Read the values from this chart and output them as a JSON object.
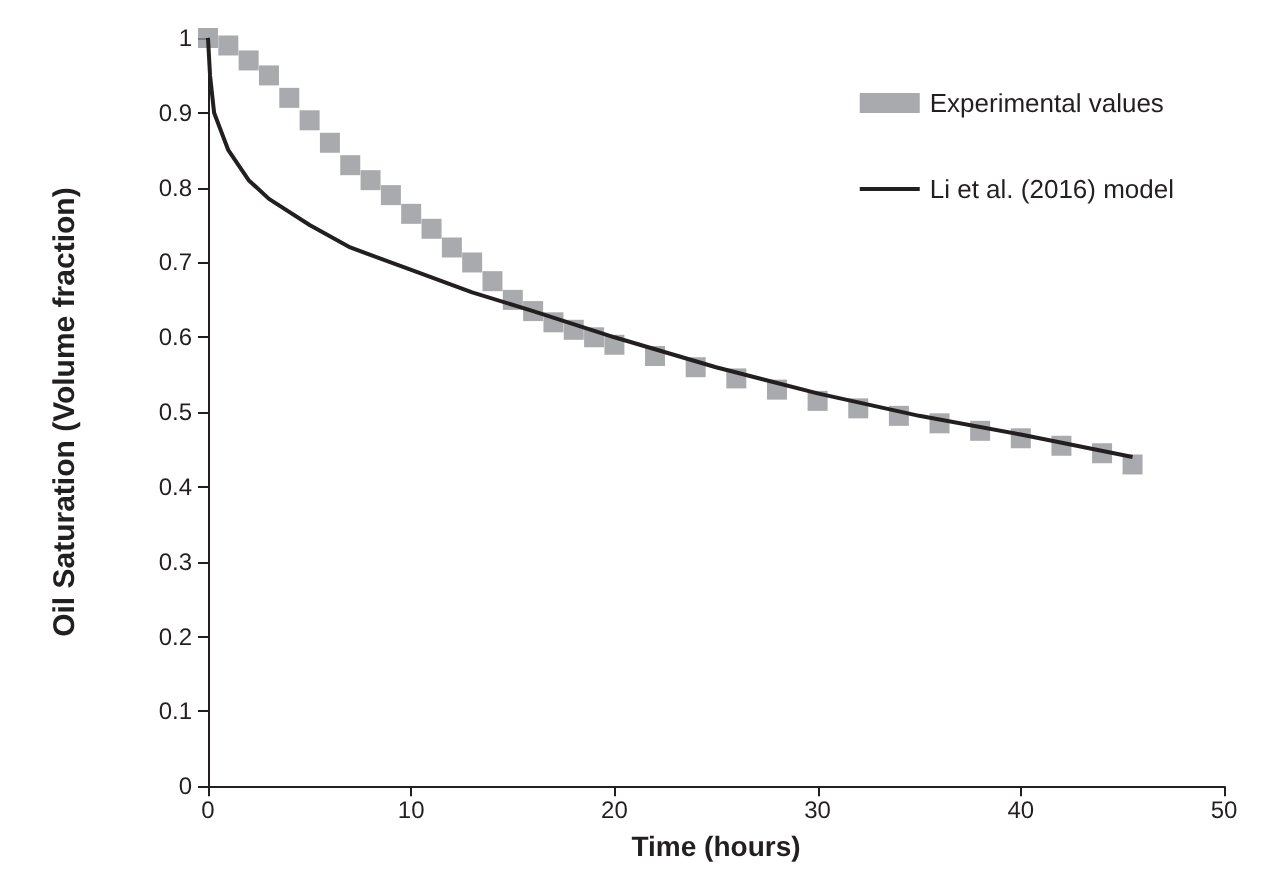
{
  "chart_data": {
    "type": "scatter",
    "xlabel": "Time (hours)",
    "ylabel": "Oil Saturation (Volume fraction)",
    "xlim": [
      0,
      50
    ],
    "xticks": [
      0,
      10,
      20,
      30,
      40,
      50
    ],
    "ylim": [
      0,
      1
    ],
    "yticks": [
      0,
      0.1,
      0.2,
      0.3,
      0.4,
      0.5,
      0.6,
      0.7,
      0.8,
      0.9,
      1
    ],
    "grid": false,
    "legend": "top right",
    "series": [
      {
        "name": "Experimental values",
        "marker": "square",
        "color": "#939598",
        "x": [
          0,
          1,
          2,
          3,
          4,
          5,
          6,
          7,
          8,
          9,
          10,
          11,
          12,
          13,
          14,
          15,
          16,
          17,
          18,
          19,
          20,
          22,
          24,
          26,
          28,
          30,
          32,
          34,
          36,
          38,
          40,
          42,
          44,
          45.5
        ],
        "values": [
          1.0,
          0.99,
          0.97,
          0.95,
          0.92,
          0.89,
          0.86,
          0.83,
          0.81,
          0.79,
          0.765,
          0.745,
          0.72,
          0.7,
          0.675,
          0.65,
          0.635,
          0.62,
          0.61,
          0.6,
          0.59,
          0.575,
          0.56,
          0.545,
          0.53,
          0.515,
          0.505,
          0.495,
          0.485,
          0.475,
          0.465,
          0.455,
          0.445,
          0.43
        ]
      },
      {
        "name": "Li et al. (2016) model",
        "type": "line",
        "marker": "none",
        "line_style": "solid",
        "color": "#231f20",
        "x": [
          0,
          0.1,
          0.3,
          1,
          2,
          3,
          5,
          7,
          10,
          13,
          16,
          20,
          25,
          30,
          35,
          40,
          45.5
        ],
        "values": [
          1,
          0.95,
          0.9,
          0.85,
          0.81,
          0.785,
          0.75,
          0.72,
          0.69,
          0.66,
          0.635,
          0.6,
          0.56,
          0.525,
          0.495,
          0.47,
          0.44
        ]
      }
    ]
  }
}
